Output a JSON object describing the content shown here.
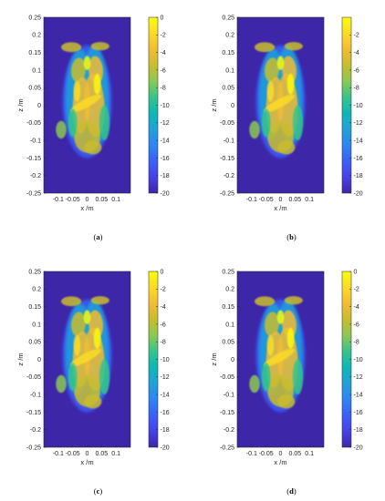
{
  "figure": {
    "palette": {
      "background": "#ffffff",
      "axis": "#262626",
      "parula": [
        "#3e26a8",
        "#4742e8",
        "#3b5ff9",
        "#2d86f3",
        "#1fa2d9",
        "#0db7b6",
        "#35c48b",
        "#8bc953",
        "#c9bd2d",
        "#f3bc33",
        "#fbdc25",
        "#f9fb0e"
      ]
    }
  },
  "chart_data": [
    {
      "panel": "a",
      "type": "heatmap",
      "caption_letter": "a",
      "caption": "(a)",
      "xlabel": "x /m",
      "ylabel": "z /m",
      "xlim": [
        -0.15,
        0.15
      ],
      "ylim": [
        -0.25,
        0.25
      ],
      "xticks": [
        "-0.1",
        "-0.05",
        "0",
        "0.05",
        "0.1"
      ],
      "yticks": [
        "0.25",
        "0.2",
        "0.15",
        "0.1",
        "0.05",
        "0",
        "-0.05",
        "-0.1",
        "-0.15",
        "-0.2",
        "-0.25"
      ],
      "colorbar": {
        "clim": [
          -20,
          0
        ],
        "ticks": [
          "0",
          "-2",
          "-4",
          "-6",
          "-8",
          "-10",
          "-12",
          "-14",
          "-16",
          "-18",
          "-20"
        ],
        "colormap": "parula"
      },
      "background_level_db": -20
    },
    {
      "panel": "b",
      "type": "heatmap",
      "caption_letter": "b",
      "caption": "(b)",
      "xlabel": "x /m",
      "ylabel": "z /m",
      "xlim": [
        -0.15,
        0.15
      ],
      "ylim": [
        -0.25,
        0.25
      ],
      "xticks": [
        "-0.1",
        "-0.05",
        "0",
        "0.05",
        "0.1"
      ],
      "yticks": [
        "0.25",
        "0.2",
        "0.15",
        "0.1",
        "0.05",
        "0",
        "-0.05",
        "-0.1",
        "-0.15",
        "-0.2",
        "-0.25"
      ],
      "colorbar": {
        "clim": [
          -20,
          0
        ],
        "ticks": [
          "-2",
          "-4",
          "-6",
          "-8",
          "-10",
          "-12",
          "-14",
          "-16",
          "-18",
          "-20"
        ],
        "colormap": "parula"
      },
      "background_level_db": -20
    },
    {
      "panel": "c",
      "type": "heatmap",
      "caption_letter": "c",
      "caption": "(c)",
      "xlabel": "x /m",
      "ylabel": "z /m",
      "xlim": [
        -0.15,
        0.15
      ],
      "ylim": [
        -0.25,
        0.25
      ],
      "xticks": [
        "-0.1",
        "-0.05",
        "0",
        "0.05",
        "0.1"
      ],
      "yticks": [
        "0.25",
        "0.2",
        "0.15",
        "0.1",
        "0.05",
        "0",
        "-0.05",
        "-0.1",
        "-0.15",
        "-0.2",
        "-0.25"
      ],
      "colorbar": {
        "clim": [
          -20,
          0
        ],
        "ticks": [
          "0",
          "-2",
          "-4",
          "-6",
          "-8",
          "-10",
          "-12",
          "-14",
          "-16",
          "-18",
          "-20"
        ],
        "colormap": "parula"
      },
      "background_level_db": -20
    },
    {
      "panel": "d",
      "type": "heatmap",
      "caption_letter": "d",
      "caption": "(d)",
      "xlabel": "x /m",
      "ylabel": "z /m",
      "xlim": [
        -0.15,
        0.15
      ],
      "ylim": [
        -0.25,
        0.25
      ],
      "xticks": [
        "-0.1",
        "-0.05",
        "0",
        "0.05",
        "0.1"
      ],
      "yticks": [
        "0.25",
        "0.2",
        "0.15",
        "0.1",
        "0.05",
        "0",
        "-0.05",
        "-0.1",
        "-0.15",
        "-0.2",
        "-0.25"
      ],
      "colorbar": {
        "clim": [
          -20,
          0
        ],
        "ticks": [
          "0",
          "-2",
          "-4",
          "-6",
          "-8",
          "-10",
          "-12",
          "-14",
          "-16",
          "-18",
          "-20"
        ],
        "colormap": "parula"
      },
      "background_level_db": -20
    }
  ]
}
